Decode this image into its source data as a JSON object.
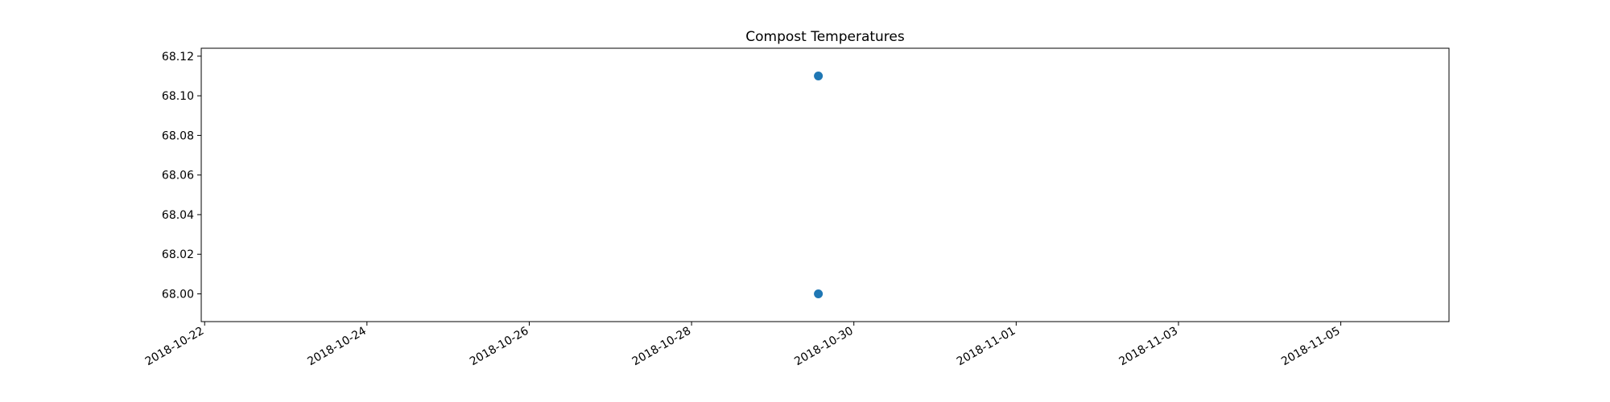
{
  "chart_data": {
    "type": "scatter",
    "title": "Compost Temperatures",
    "xlabel": "",
    "ylabel": "",
    "x_axis": {
      "kind": "date",
      "range": [
        "2018-10-21T23:00:00",
        "2018-11-06T08:00:00"
      ],
      "ticks": [
        "2018-10-22",
        "2018-10-24",
        "2018-10-26",
        "2018-10-28",
        "2018-10-30",
        "2018-11-01",
        "2018-11-03",
        "2018-11-05"
      ]
    },
    "y_axis": {
      "range": [
        67.986,
        68.124
      ],
      "ticks": [
        "68.00",
        "68.02",
        "68.04",
        "68.06",
        "68.08",
        "68.10",
        "68.12"
      ]
    },
    "grid": false,
    "series": [
      {
        "color": "#1f77b4",
        "points": [
          {
            "x": "2018-10-29T13:30:00",
            "y": 68.11
          },
          {
            "x": "2018-10-29T13:30:00",
            "y": 68.0
          }
        ]
      }
    ]
  }
}
